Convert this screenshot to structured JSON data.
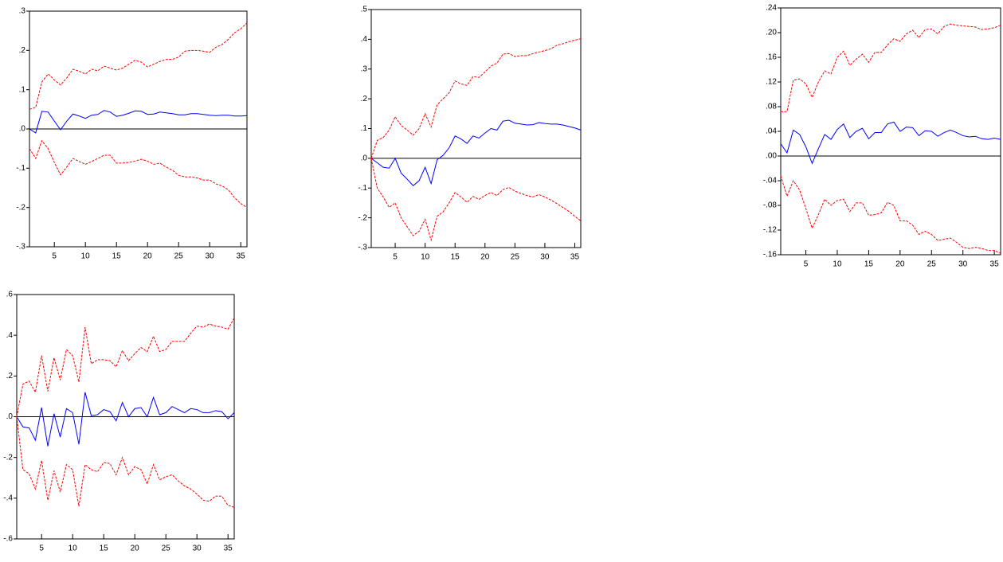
{
  "chart_data": [
    {
      "type": "line",
      "x": [
        1,
        2,
        3,
        4,
        5,
        6,
        7,
        8,
        9,
        10,
        11,
        12,
        13,
        14,
        15,
        16,
        17,
        18,
        19,
        20,
        21,
        22,
        23,
        24,
        25,
        26,
        27,
        28,
        29,
        30,
        31,
        32,
        33,
        34,
        35,
        36
      ],
      "xlim": [
        1,
        36
      ],
      "xticks": [
        5,
        10,
        15,
        20,
        25,
        30,
        35
      ],
      "ylim": [
        -0.3,
        0.3
      ],
      "yticks": [
        {
          "value": 0.3,
          "label": ".3"
        },
        {
          "value": 0.2,
          "label": ".2"
        },
        {
          "value": 0.1,
          "label": ".1"
        },
        {
          "value": 0,
          "label": ".0"
        },
        {
          "value": -0.1,
          "label": "-.1"
        },
        {
          "value": -0.2,
          "label": "-.2"
        },
        {
          "value": -0.3,
          "label": "-.3"
        }
      ],
      "zero_line": true,
      "series": [
        {
          "color": "#0000ff",
          "dashed": false,
          "values": [
            0.0,
            -0.01,
            0.045,
            0.043,
            0.02,
            -0.002,
            0.02,
            0.038,
            0.033,
            0.027,
            0.035,
            0.037,
            0.047,
            0.043,
            0.032,
            0.035,
            0.04,
            0.046,
            0.045,
            0.037,
            0.038,
            0.043,
            0.041,
            0.039,
            0.036,
            0.036,
            0.039,
            0.039,
            0.037,
            0.035,
            0.034,
            0.035,
            0.035,
            0.033,
            0.033,
            0.034
          ]
        },
        {
          "color": "#ff0000",
          "dashed": true,
          "values": [
            0.05,
            0.055,
            0.12,
            0.14,
            0.125,
            0.112,
            0.13,
            0.152,
            0.147,
            0.14,
            0.152,
            0.148,
            0.16,
            0.155,
            0.15,
            0.155,
            0.165,
            0.175,
            0.17,
            0.158,
            0.165,
            0.172,
            0.177,
            0.177,
            0.183,
            0.198,
            0.2,
            0.2,
            0.198,
            0.195,
            0.208,
            0.215,
            0.228,
            0.245,
            0.255,
            0.27
          ]
        },
        {
          "color": "#ff0000",
          "dashed": true,
          "values": [
            -0.05,
            -0.075,
            -0.03,
            -0.05,
            -0.085,
            -0.117,
            -0.097,
            -0.075,
            -0.083,
            -0.09,
            -0.083,
            -0.075,
            -0.067,
            -0.067,
            -0.087,
            -0.087,
            -0.085,
            -0.082,
            -0.077,
            -0.082,
            -0.09,
            -0.087,
            -0.097,
            -0.105,
            -0.118,
            -0.122,
            -0.122,
            -0.125,
            -0.13,
            -0.13,
            -0.14,
            -0.145,
            -0.155,
            -0.175,
            -0.19,
            -0.2
          ]
        }
      ]
    },
    {
      "type": "line",
      "x": [
        1,
        2,
        3,
        4,
        5,
        6,
        7,
        8,
        9,
        10,
        11,
        12,
        13,
        14,
        15,
        16,
        17,
        18,
        19,
        20,
        21,
        22,
        23,
        24,
        25,
        26,
        27,
        28,
        29,
        30,
        31,
        32,
        33,
        34,
        35,
        36
      ],
      "xlim": [
        1,
        36
      ],
      "xticks": [
        5,
        10,
        15,
        20,
        25,
        30,
        35
      ],
      "ylim": [
        -0.3,
        0.5
      ],
      "yticks": [
        {
          "value": 0.5,
          "label": ".5"
        },
        {
          "value": 0.4,
          "label": ".4"
        },
        {
          "value": 0.3,
          "label": ".3"
        },
        {
          "value": 0.2,
          "label": ".2"
        },
        {
          "value": 0.1,
          "label": ".1"
        },
        {
          "value": 0,
          "label": ".0"
        },
        {
          "value": -0.1,
          "label": "-.1"
        },
        {
          "value": -0.2,
          "label": "-.2"
        },
        {
          "value": -0.3,
          "label": "-.3"
        }
      ],
      "zero_line": true,
      "series": [
        {
          "color": "#0000ff",
          "dashed": false,
          "values": [
            0,
            -0.015,
            -0.03,
            -0.033,
            0.0,
            -0.05,
            -0.07,
            -0.092,
            -0.075,
            -0.03,
            -0.085,
            -0.005,
            0.01,
            0.035,
            0.075,
            0.065,
            0.05,
            0.075,
            0.068,
            0.085,
            0.1,
            0.095,
            0.125,
            0.128,
            0.118,
            0.115,
            0.112,
            0.113,
            0.12,
            0.117,
            0.115,
            0.115,
            0.112,
            0.107,
            0.102,
            0.095
          ]
        },
        {
          "color": "#ff0000",
          "dashed": true,
          "values": [
            0,
            0.06,
            0.07,
            0.095,
            0.14,
            0.11,
            0.095,
            0.078,
            0.1,
            0.15,
            0.105,
            0.18,
            0.2,
            0.22,
            0.26,
            0.25,
            0.245,
            0.275,
            0.272,
            0.29,
            0.31,
            0.32,
            0.35,
            0.352,
            0.342,
            0.345,
            0.345,
            0.352,
            0.357,
            0.362,
            0.368,
            0.38,
            0.385,
            0.392,
            0.397,
            0.402
          ]
        },
        {
          "color": "#ff0000",
          "dashed": true,
          "values": [
            0,
            -0.1,
            -0.13,
            -0.165,
            -0.15,
            -0.2,
            -0.23,
            -0.26,
            -0.245,
            -0.205,
            -0.275,
            -0.195,
            -0.18,
            -0.15,
            -0.115,
            -0.13,
            -0.148,
            -0.128,
            -0.138,
            -0.125,
            -0.115,
            -0.125,
            -0.105,
            -0.098,
            -0.11,
            -0.118,
            -0.125,
            -0.13,
            -0.122,
            -0.13,
            -0.14,
            -0.152,
            -0.165,
            -0.178,
            -0.195,
            -0.21
          ]
        }
      ]
    },
    {
      "type": "line",
      "x": [
        1,
        2,
        3,
        4,
        5,
        6,
        7,
        8,
        9,
        10,
        11,
        12,
        13,
        14,
        15,
        16,
        17,
        18,
        19,
        20,
        21,
        22,
        23,
        24,
        25,
        26,
        27,
        28,
        29,
        30,
        31,
        32,
        33,
        34,
        35,
        36
      ],
      "xlim": [
        1,
        36
      ],
      "xticks": [
        5,
        10,
        15,
        20,
        25,
        30,
        35
      ],
      "ylim": [
        -0.16,
        0.24
      ],
      "yticks": [
        {
          "value": 0.24,
          "label": ".24"
        },
        {
          "value": 0.2,
          "label": ".20"
        },
        {
          "value": 0.16,
          "label": ".16"
        },
        {
          "value": 0.12,
          "label": ".12"
        },
        {
          "value": 0.08,
          "label": ".08"
        },
        {
          "value": 0.04,
          "label": ".04"
        },
        {
          "value": 0,
          "label": ".00"
        },
        {
          "value": -0.04,
          "label": "-.04"
        },
        {
          "value": -0.08,
          "label": "-.08"
        },
        {
          "value": -0.12,
          "label": "-.12"
        },
        {
          "value": -0.16,
          "label": "-.16"
        }
      ],
      "zero_line": true,
      "series": [
        {
          "color": "#0000ff",
          "dashed": false,
          "values": [
            0.02,
            0.005,
            0.042,
            0.035,
            0.015,
            -0.012,
            0.012,
            0.035,
            0.027,
            0.043,
            0.052,
            0.03,
            0.04,
            0.045,
            0.028,
            0.038,
            0.038,
            0.052,
            0.055,
            0.04,
            0.047,
            0.046,
            0.033,
            0.041,
            0.04,
            0.032,
            0.038,
            0.042,
            0.038,
            0.033,
            0.031,
            0.032,
            0.028,
            0.027,
            0.029,
            0.027
          ]
        },
        {
          "color": "#ff0000",
          "dashed": true,
          "values": [
            0.072,
            0.072,
            0.123,
            0.125,
            0.117,
            0.095,
            0.12,
            0.138,
            0.133,
            0.16,
            0.17,
            0.147,
            0.157,
            0.165,
            0.152,
            0.168,
            0.168,
            0.18,
            0.19,
            0.186,
            0.198,
            0.204,
            0.192,
            0.205,
            0.206,
            0.198,
            0.21,
            0.214,
            0.212,
            0.211,
            0.21,
            0.209,
            0.205,
            0.206,
            0.208,
            0.212
          ]
        },
        {
          "color": "#ff0000",
          "dashed": true,
          "values": [
            -0.032,
            -0.065,
            -0.04,
            -0.055,
            -0.085,
            -0.117,
            -0.095,
            -0.07,
            -0.08,
            -0.072,
            -0.07,
            -0.09,
            -0.076,
            -0.076,
            -0.096,
            -0.095,
            -0.092,
            -0.075,
            -0.08,
            -0.105,
            -0.105,
            -0.112,
            -0.127,
            -0.122,
            -0.127,
            -0.137,
            -0.135,
            -0.133,
            -0.14,
            -0.148,
            -0.15,
            -0.148,
            -0.15,
            -0.153,
            -0.153,
            -0.158
          ]
        }
      ]
    },
    {
      "type": "line",
      "x": [
        1,
        2,
        3,
        4,
        5,
        6,
        7,
        8,
        9,
        10,
        11,
        12,
        13,
        14,
        15,
        16,
        17,
        18,
        19,
        20,
        21,
        22,
        23,
        24,
        25,
        26,
        27,
        28,
        29,
        30,
        31,
        32,
        33,
        34,
        35,
        36
      ],
      "xlim": [
        1,
        36
      ],
      "xticks": [
        5,
        10,
        15,
        20,
        25,
        30,
        35
      ],
      "ylim": [
        -0.6,
        0.6
      ],
      "yticks": [
        {
          "value": 0.6,
          "label": ".6"
        },
        {
          "value": 0.4,
          "label": ".4"
        },
        {
          "value": 0.2,
          "label": ".2"
        },
        {
          "value": 0,
          "label": ".0"
        },
        {
          "value": -0.2,
          "label": "-.2"
        },
        {
          "value": -0.4,
          "label": "-.4"
        },
        {
          "value": -0.6,
          "label": "-.6"
        }
      ],
      "zero_line": true,
      "series": [
        {
          "color": "#0000ff",
          "dashed": false,
          "values": [
            0,
            -0.05,
            -0.055,
            -0.115,
            0.045,
            -0.145,
            0.015,
            -0.1,
            0.04,
            0.02,
            -0.135,
            0.12,
            0.005,
            0.01,
            0.035,
            0.025,
            -0.02,
            0.07,
            0.0,
            0.04,
            0.045,
            0.0,
            0.095,
            0.01,
            0.02,
            0.05,
            0.035,
            0.02,
            0.04,
            0.035,
            0.02,
            0.02,
            0.03,
            0.025,
            -0.01,
            0.02
          ]
        },
        {
          "color": "#ff0000",
          "dashed": true,
          "values": [
            0,
            0.16,
            0.175,
            0.12,
            0.3,
            0.125,
            0.29,
            0.18,
            0.33,
            0.3,
            0.17,
            0.44,
            0.26,
            0.28,
            0.28,
            0.275,
            0.245,
            0.325,
            0.275,
            0.31,
            0.34,
            0.32,
            0.395,
            0.32,
            0.33,
            0.37,
            0.37,
            0.37,
            0.41,
            0.445,
            0.44,
            0.455,
            0.445,
            0.44,
            0.43,
            0.485
          ]
        },
        {
          "color": "#ff0000",
          "dashed": true,
          "values": [
            0,
            -0.26,
            -0.28,
            -0.355,
            -0.215,
            -0.41,
            -0.265,
            -0.37,
            -0.235,
            -0.26,
            -0.44,
            -0.235,
            -0.26,
            -0.27,
            -0.225,
            -0.23,
            -0.285,
            -0.2,
            -0.285,
            -0.245,
            -0.26,
            -0.33,
            -0.235,
            -0.31,
            -0.295,
            -0.285,
            -0.315,
            -0.34,
            -0.355,
            -0.38,
            -0.41,
            -0.415,
            -0.39,
            -0.39,
            -0.435,
            -0.445
          ]
        }
      ]
    }
  ]
}
